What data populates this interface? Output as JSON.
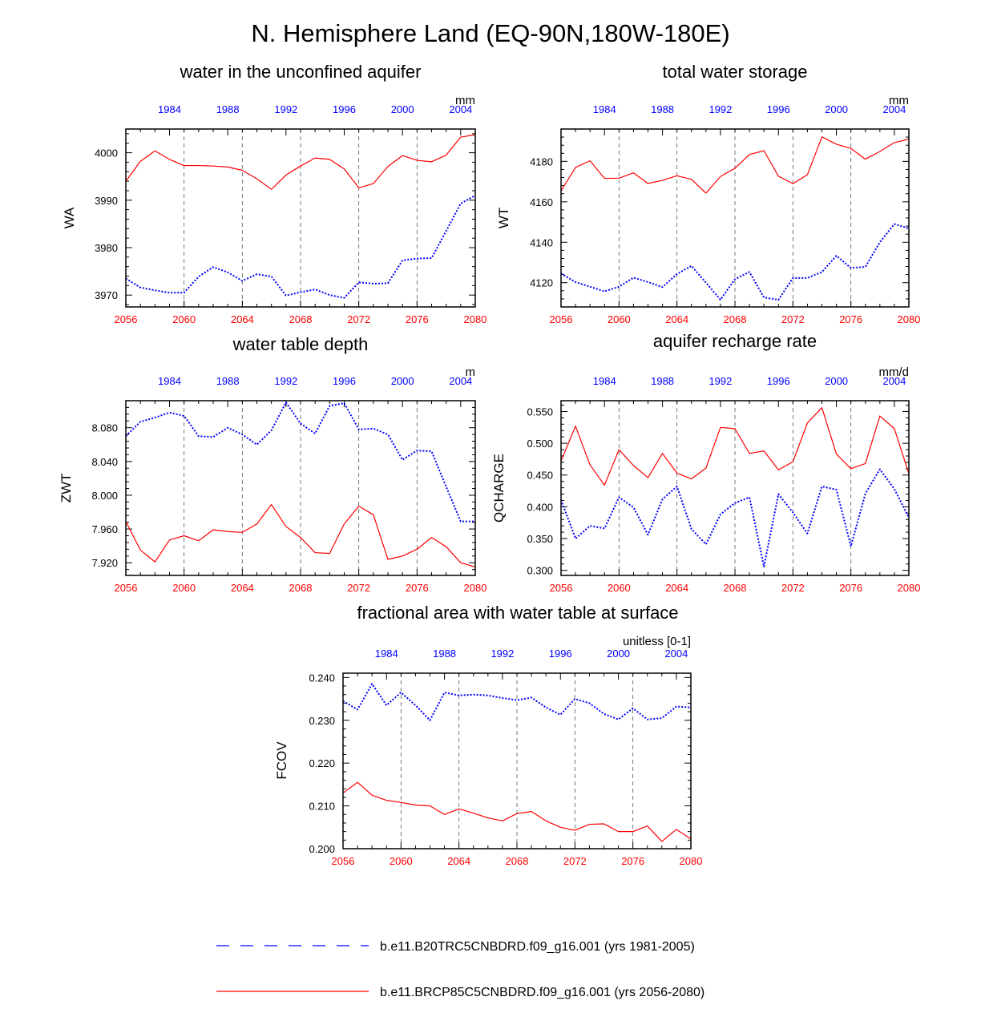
{
  "title": "N. Hemisphere Land (EQ-90N,180W-180E)",
  "colors": {
    "rcp": "#ff0000",
    "hist": "#0000ff",
    "grid": "#555555"
  },
  "legend": {
    "hist_label": "b.e11.B20TRC5CNBDRD.f09_g16.001 (yrs 1981-2005)",
    "rcp_label": "b.e11.BRCP85C5CNBDRD.f09_g16.001 (yrs 2056-2080)"
  },
  "chart_data": [
    {
      "type": "line",
      "title": "water in the unconfined aquifer",
      "ylabel": "WA",
      "unit": "mm",
      "xlim": [
        2056,
        2080
      ],
      "x_ticks": [
        2056,
        2060,
        2064,
        2068,
        2072,
        2076,
        2080
      ],
      "top_ticks": [
        "1984",
        "1988",
        "1992",
        "1996",
        "2000",
        "2004"
      ],
      "ylim": [
        3967.5,
        4005
      ],
      "y_ticks": [
        3970,
        3980,
        3990,
        4000
      ],
      "y_tick_labels": [
        "3970",
        "3980",
        "3990",
        "4000"
      ],
      "grid": "dashed vertical at 2060, 2064, 2068, 2072, 2076",
      "series": [
        {
          "series_key": "rcp",
          "style": "solid",
          "values": [
            3994.0,
            3998.2,
            4000.4,
            3998.6,
            3997.3,
            3997.3,
            3997.2,
            3997.0,
            3996.3,
            3994.5,
            3992.3,
            3995.3,
            3997.2,
            3998.9,
            3998.6,
            3996.6,
            3992.6,
            3993.5,
            3997.1,
            3999.4,
            3998.4,
            3998.1,
            3999.5,
            4003.3,
            4003.8
          ]
        },
        {
          "series_key": "hist",
          "style": "dotted",
          "values": [
            3973.5,
            3971.6,
            3971.0,
            3970.5,
            3970.5,
            3973.9,
            3975.9,
            3974.8,
            3973.0,
            3974.4,
            3973.9,
            3969.9,
            3970.6,
            3971.2,
            3970.0,
            3969.4,
            3972.7,
            3972.4,
            3972.5,
            3977.3,
            3977.7,
            3977.8,
            3983.5,
            3989.3,
            3991.0
          ]
        }
      ]
    },
    {
      "type": "line",
      "title": "total water storage",
      "ylabel": "WT",
      "unit": "mm",
      "xlim": [
        2056,
        2080
      ],
      "x_ticks": [
        2056,
        2060,
        2064,
        2068,
        2072,
        2076,
        2080
      ],
      "top_ticks": [
        "1984",
        "1988",
        "1992",
        "1996",
        "2000",
        "2004"
      ],
      "ylim": [
        4108,
        4196
      ],
      "y_ticks": [
        4120,
        4140,
        4160,
        4180
      ],
      "y_tick_labels": [
        "4120",
        "4140",
        "4160",
        "4180"
      ],
      "grid": "dashed vertical at 2060, 2064, 2068, 2072, 2076",
      "series": [
        {
          "series_key": "rcp",
          "style": "solid",
          "values": [
            4165.4,
            4177.0,
            4180.3,
            4171.6,
            4171.7,
            4174.3,
            4169.1,
            4170.6,
            4172.9,
            4171.1,
            4164.3,
            4172.5,
            4176.6,
            4183.4,
            4185.3,
            4172.7,
            4169.0,
            4173.4,
            4192.1,
            4188.5,
            4186.4,
            4181.1,
            4184.9,
            4189.3,
            4191.0
          ]
        },
        {
          "series_key": "hist",
          "style": "dotted",
          "values": [
            4124.5,
            4120.3,
            4118.0,
            4115.7,
            4118.0,
            4122.5,
            4120.3,
            4117.8,
            4124.3,
            4128.3,
            4120.0,
            4111.6,
            4121.7,
            4125.3,
            4112.7,
            4111.5,
            4122.3,
            4122.3,
            4125.3,
            4133.3,
            4127.3,
            4127.8,
            4140.0,
            4149.0,
            4146.8
          ]
        }
      ]
    },
    {
      "type": "line",
      "title": "water table depth",
      "ylabel": "ZWT",
      "unit": "m",
      "xlim": [
        2056,
        2080
      ],
      "x_ticks": [
        2056,
        2060,
        2064,
        2068,
        2072,
        2076,
        2080
      ],
      "top_ticks": [
        "1984",
        "1988",
        "1992",
        "1996",
        "2000",
        "2004"
      ],
      "ylim": [
        7.905,
        8.112
      ],
      "y_ticks": [
        7.92,
        7.96,
        8.0,
        8.04,
        8.08
      ],
      "y_tick_labels": [
        "7.920",
        "7.960",
        "8.000",
        "8.040",
        "8.080"
      ],
      "grid": "dashed vertical at 2060, 2064, 2068, 2072, 2076",
      "series": [
        {
          "series_key": "rcp",
          "style": "solid",
          "values": [
            7.969,
            7.935,
            7.921,
            7.947,
            7.952,
            7.946,
            7.959,
            7.957,
            7.956,
            7.966,
            7.989,
            7.963,
            7.95,
            7.932,
            7.931,
            7.966,
            7.987,
            7.977,
            7.924,
            7.928,
            7.936,
            7.95,
            7.939,
            7.92,
            7.915
          ]
        },
        {
          "series_key": "hist",
          "style": "dotted",
          "values": [
            8.07,
            8.087,
            8.092,
            8.098,
            8.094,
            8.07,
            8.069,
            8.08,
            8.072,
            8.06,
            8.077,
            8.11,
            8.085,
            8.073,
            8.106,
            8.109,
            8.078,
            8.079,
            8.072,
            8.042,
            8.053,
            8.052,
            8.01,
            7.969,
            7.969
          ]
        }
      ]
    },
    {
      "type": "line",
      "title": "aquifer recharge rate",
      "ylabel": "QCHARGE",
      "unit": "mm/d",
      "xlim": [
        2056,
        2080
      ],
      "x_ticks": [
        2056,
        2060,
        2064,
        2068,
        2072,
        2076,
        2080
      ],
      "top_ticks": [
        "1984",
        "1988",
        "1992",
        "1996",
        "2000",
        "2004"
      ],
      "ylim": [
        0.292,
        0.567
      ],
      "y_ticks": [
        0.3,
        0.35,
        0.4,
        0.45,
        0.5,
        0.55
      ],
      "y_tick_labels": [
        "0.300",
        "0.350",
        "0.400",
        "0.450",
        "0.500",
        "0.550"
      ],
      "grid": "dashed vertical at 2060, 2064, 2068, 2072, 2076",
      "series": [
        {
          "series_key": "rcp",
          "style": "solid",
          "values": [
            0.472,
            0.527,
            0.466,
            0.434,
            0.49,
            0.465,
            0.446,
            0.484,
            0.453,
            0.444,
            0.461,
            0.525,
            0.523,
            0.484,
            0.488,
            0.458,
            0.471,
            0.532,
            0.556,
            0.483,
            0.46,
            0.468,
            0.543,
            0.523,
            0.452
          ]
        },
        {
          "series_key": "hist",
          "style": "dotted",
          "values": [
            0.411,
            0.35,
            0.37,
            0.366,
            0.415,
            0.399,
            0.356,
            0.412,
            0.432,
            0.365,
            0.341,
            0.388,
            0.406,
            0.415,
            0.306,
            0.42,
            0.391,
            0.358,
            0.432,
            0.427,
            0.338,
            0.421,
            0.459,
            0.428,
            0.383
          ]
        }
      ]
    },
    {
      "type": "line",
      "title": "fractional area with water table at surface",
      "ylabel": "FCOV",
      "unit": "unitless [0-1]",
      "xlim": [
        2056,
        2080
      ],
      "x_ticks": [
        2056,
        2060,
        2064,
        2068,
        2072,
        2076,
        2080
      ],
      "top_ticks": [
        "1984",
        "1988",
        "1992",
        "1996",
        "2000",
        "2004"
      ],
      "ylim": [
        0.2,
        0.241
      ],
      "y_ticks": [
        0.2,
        0.21,
        0.22,
        0.23,
        0.24
      ],
      "y_tick_labels": [
        "0.200",
        "0.210",
        "0.220",
        "0.230",
        "0.240"
      ],
      "grid": "dashed vertical at 2060, 2064, 2068, 2072, 2076",
      "series": [
        {
          "series_key": "rcp",
          "style": "solid",
          "values": [
            0.213,
            0.2155,
            0.2125,
            0.2113,
            0.2108,
            0.2102,
            0.21,
            0.208,
            0.2093,
            0.2083,
            0.2072,
            0.2065,
            0.2082,
            0.2087,
            0.2065,
            0.205,
            0.2043,
            0.2057,
            0.2058,
            0.204,
            0.204,
            0.2053,
            0.2017,
            0.2045,
            0.2023
          ]
        },
        {
          "series_key": "hist",
          "style": "dotted",
          "values": [
            0.2345,
            0.2325,
            0.2385,
            0.2335,
            0.2365,
            0.2335,
            0.23,
            0.2365,
            0.2358,
            0.236,
            0.2358,
            0.2352,
            0.2347,
            0.2353,
            0.233,
            0.2313,
            0.235,
            0.234,
            0.2315,
            0.2302,
            0.2328,
            0.2302,
            0.2305,
            0.2332,
            0.233
          ]
        }
      ]
    }
  ]
}
